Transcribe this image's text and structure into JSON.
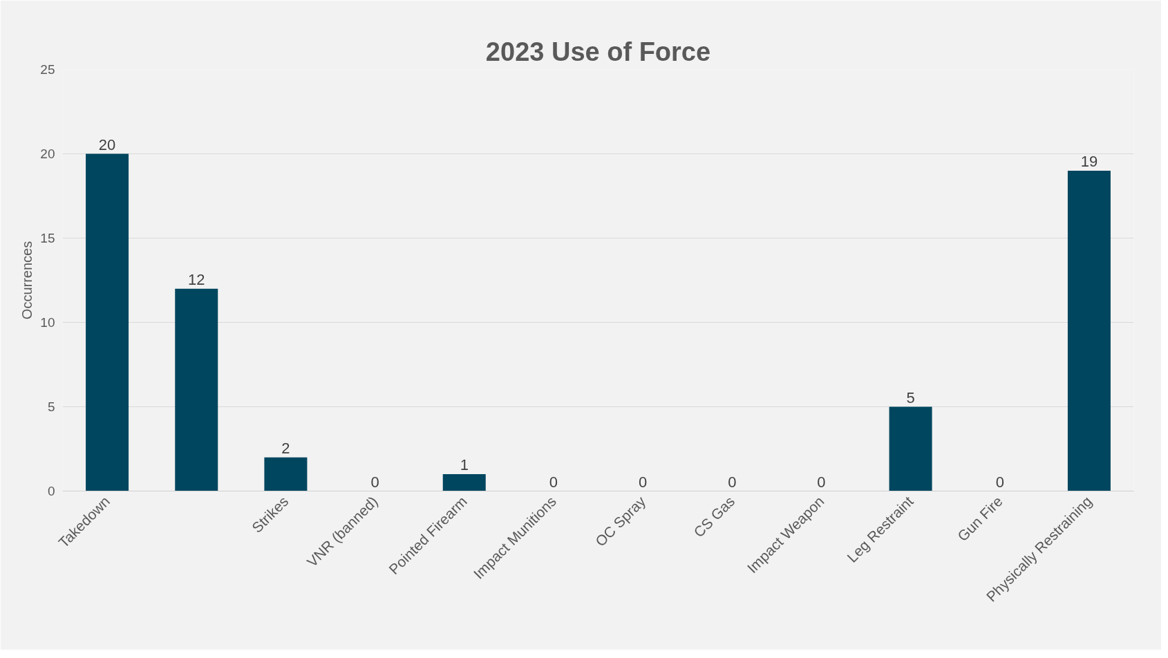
{
  "chart_data": {
    "type": "bar",
    "title": "2023 Use of Force",
    "ylabel": "Occurrences",
    "categories": [
      "Takedown",
      null,
      "Strikes",
      "VNR (banned)",
      "Pointed Firearm",
      "Impact Munitions",
      "OC Spray",
      "CS Gas",
      "Impact Weapon",
      "Leg Restraint",
      "Gun Fire",
      "Physically Restraining"
    ],
    "values": [
      20,
      12,
      2,
      0,
      1,
      0,
      0,
      0,
      0,
      5,
      0,
      19
    ],
    "color": "#00465f",
    "ylim": [
      0,
      25
    ],
    "yticks": [
      0,
      5,
      10,
      15,
      20,
      25
    ],
    "grid": "y",
    "data_labels": true
  }
}
